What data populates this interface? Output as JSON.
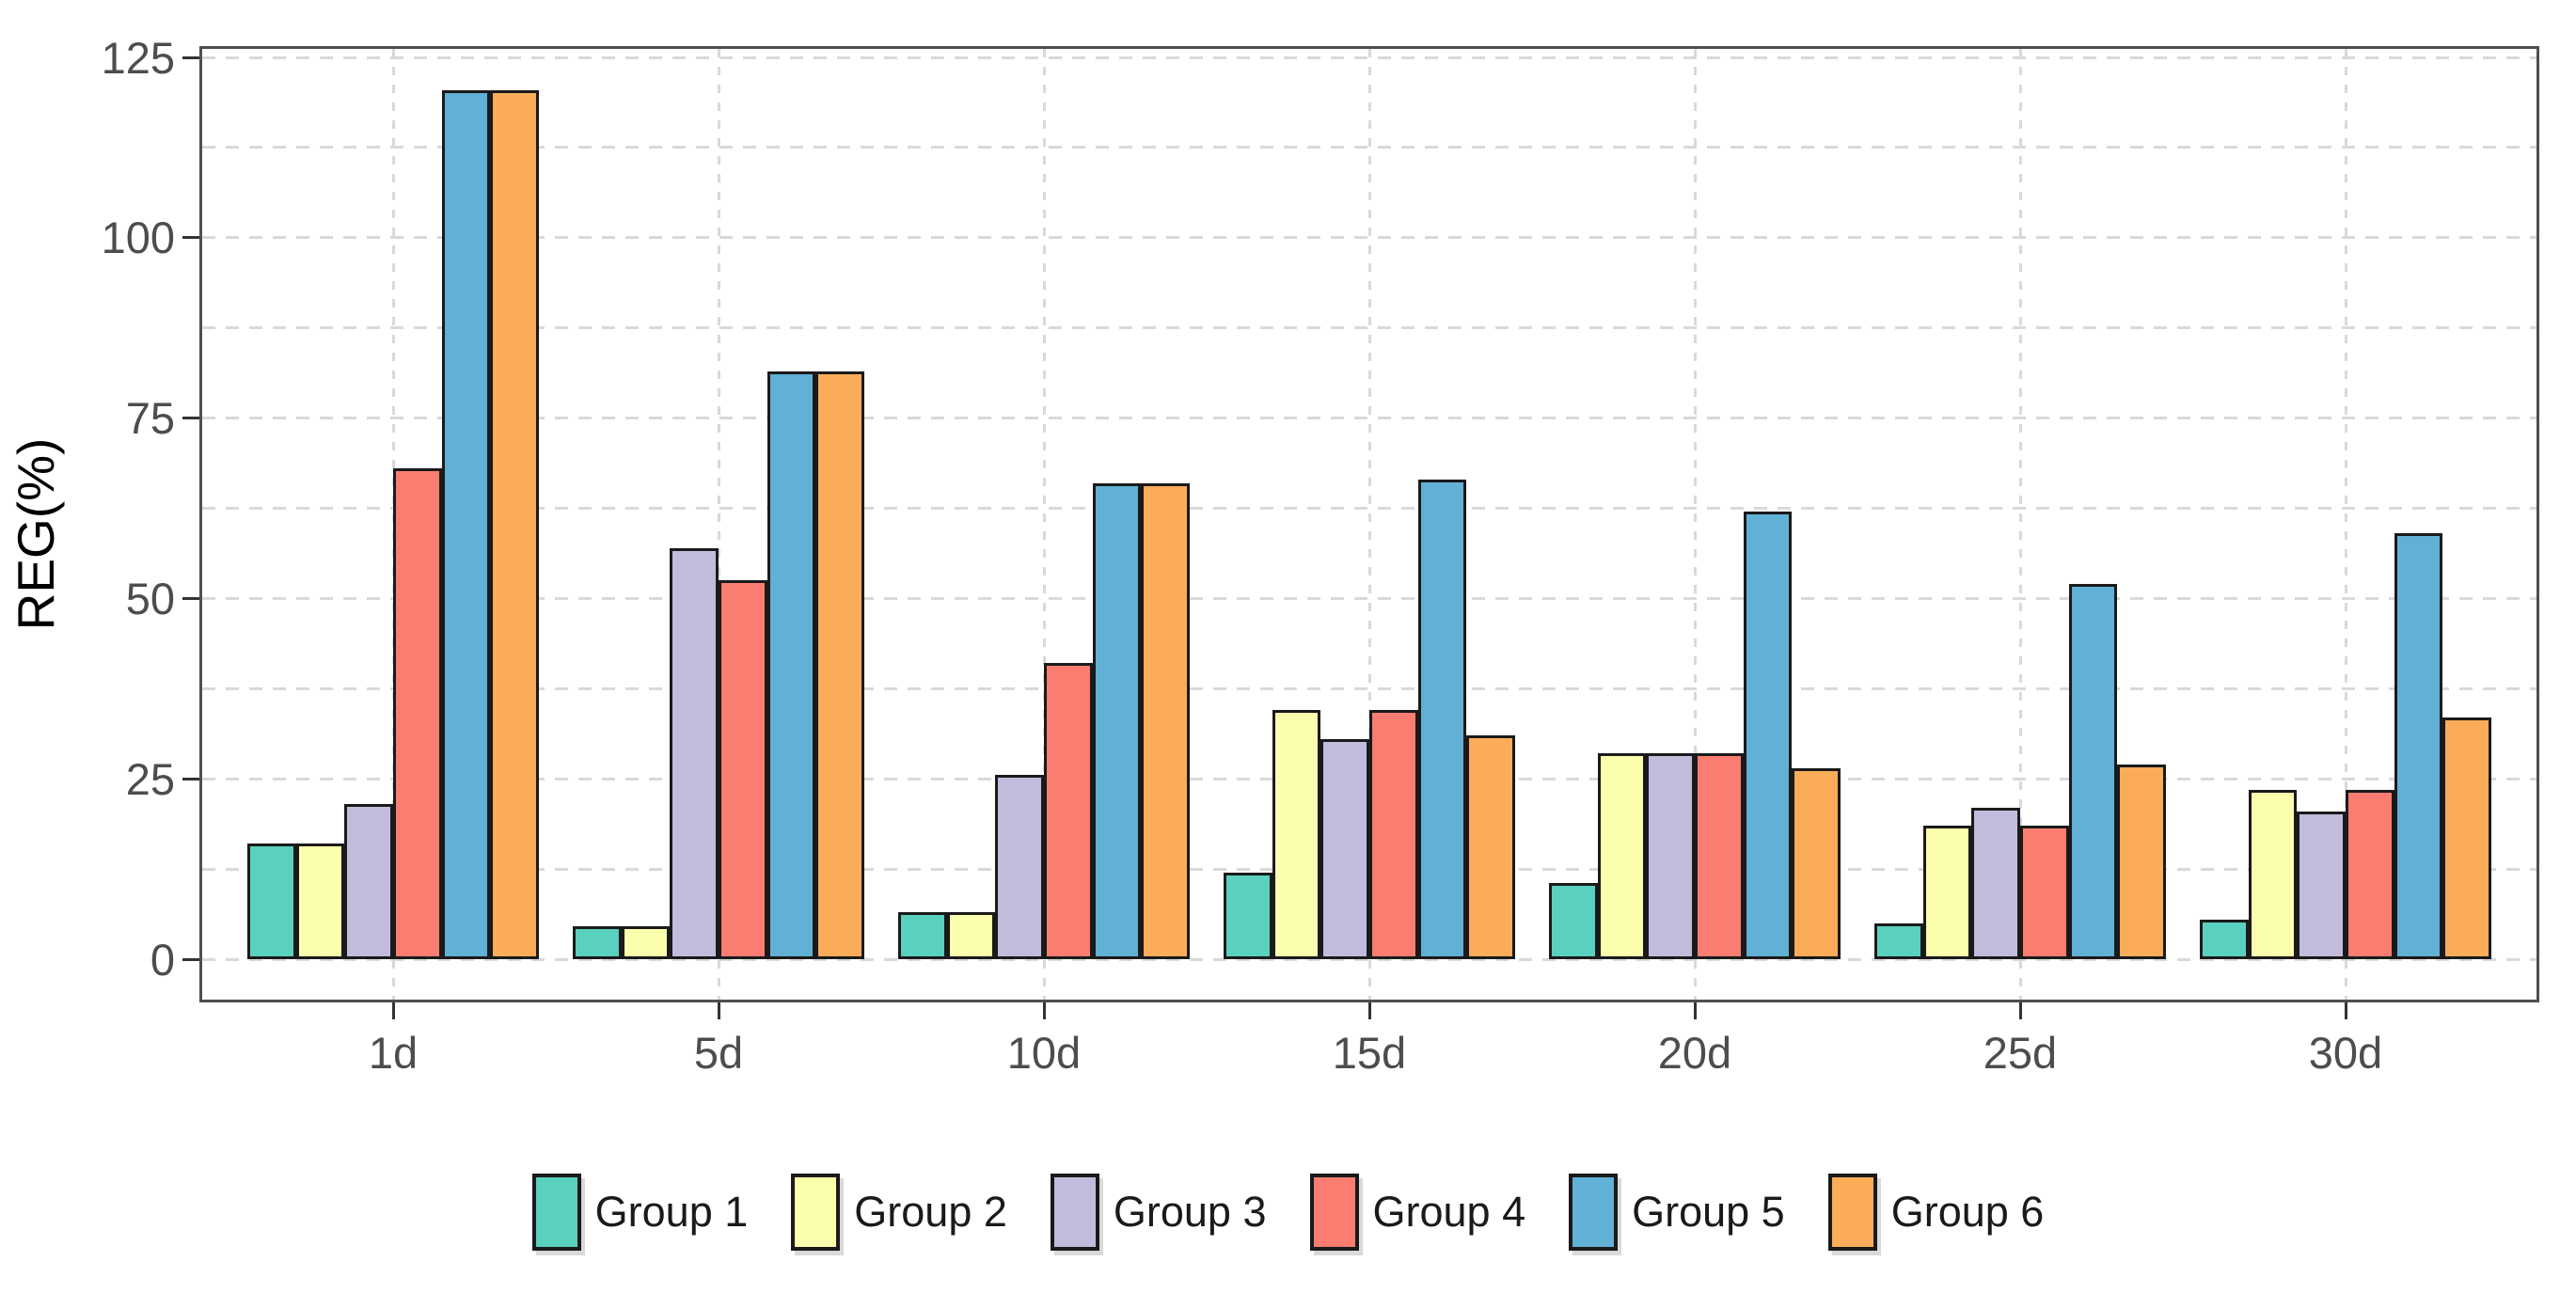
{
  "chart_data": {
    "type": "bar",
    "title": "",
    "ylabel": "REG(%)",
    "xlabel": "",
    "categories": [
      "1d",
      "5d",
      "10d",
      "15d",
      "20d",
      "25d",
      "30d"
    ],
    "series": [
      {
        "name": "Group 1",
        "color": "#5ad0be",
        "values": [
          16,
          4.5,
          6.5,
          12,
          10.5,
          5,
          5.5
        ]
      },
      {
        "name": "Group 2",
        "color": "#fbfeac",
        "values": [
          16,
          4.5,
          6.5,
          34.5,
          28.5,
          18.5,
          23.5
        ]
      },
      {
        "name": "Group 3",
        "color": "#c2bcdc",
        "values": [
          21.5,
          57,
          25.5,
          30.5,
          28.5,
          21,
          20.5
        ]
      },
      {
        "name": "Group 4",
        "color": "#fb7d71",
        "values": [
          68,
          52.5,
          41,
          34.5,
          28.5,
          18.5,
          23.5
        ]
      },
      {
        "name": "Group 5",
        "color": "#61b0d5",
        "values": [
          120.5,
          81.5,
          66,
          66.5,
          62,
          52,
          59
        ]
      },
      {
        "name": "Group 6",
        "color": "#fbac58",
        "values": [
          120.5,
          81.5,
          66,
          31,
          26.5,
          27,
          33.5
        ]
      }
    ],
    "ylim": [
      0,
      125
    ],
    "yticks": [
      0,
      25,
      50,
      75,
      100,
      125
    ],
    "minor_grid_step": 12.5,
    "grid": "dashed",
    "legend_position": "bottom",
    "bar_edge_color": "#1a1a1a",
    "grid_color": "#d9d9d9",
    "panel_border_color": "#4f4f4f",
    "tick_label_color": "#4d4d4d",
    "axis_title_color": "#000000"
  }
}
